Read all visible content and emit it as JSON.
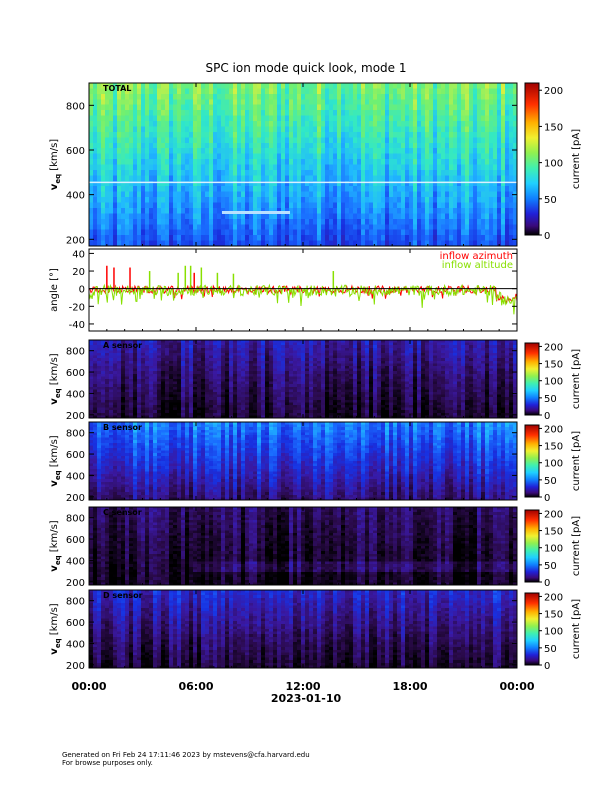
{
  "title": "SPC ion mode quick look, mode 1",
  "colors": {
    "azimuth": "#ff0000",
    "altitude": "#88e000",
    "colormap": [
      "#000000",
      "#2a0a4a",
      "#3a18a0",
      "#1830e0",
      "#1a6cff",
      "#20b8ff",
      "#30e8c8",
      "#70f070",
      "#d8f040",
      "#ffb000",
      "#ff3000",
      "#b00000"
    ]
  },
  "chart_data": [
    {
      "type": "heatmap",
      "panel": "total",
      "label": "TOTAL",
      "ylabel": "v_eq [km/s]",
      "ylabel_main": "v",
      "ylabel_sub": "eq",
      "ylabel_unit": "[km/s]",
      "ylim": [
        170,
        900
      ],
      "yticks": [
        200,
        400,
        600,
        800
      ],
      "colorbar": {
        "label": "current [pA]",
        "ticks": [
          0,
          50,
          100,
          150,
          200
        ],
        "range": [
          0,
          210
        ]
      },
      "intensity": "high"
    },
    {
      "type": "line",
      "panel": "angles",
      "ylabel": "angle [°]",
      "ylim": [
        -48,
        45
      ],
      "yticks": [
        -40,
        -20,
        0,
        20,
        40
      ],
      "zero_line": true,
      "legend": [
        {
          "name": "inflow azimuth",
          "color": "#ff0000"
        },
        {
          "name": "inflow altitude",
          "color": "#88e000"
        }
      ],
      "series": [
        {
          "name": "inflow azimuth",
          "baseline": -1,
          "noise": 4
        },
        {
          "name": "inflow altitude",
          "baseline": -2,
          "noise": 6
        }
      ],
      "spikes": [
        {
          "t": 1.0,
          "value": 26,
          "series": "inflow azimuth"
        },
        {
          "t": 1.4,
          "value": 24,
          "series": "inflow azimuth"
        },
        {
          "t": 2.3,
          "value": 24,
          "series": "inflow azimuth"
        },
        {
          "t": 3.4,
          "value": 20,
          "series": "inflow altitude"
        },
        {
          "t": 5.0,
          "value": 18,
          "series": "inflow altitude"
        },
        {
          "t": 5.4,
          "value": 26,
          "series": "inflow altitude"
        },
        {
          "t": 5.7,
          "value": 26,
          "series": "inflow altitude"
        },
        {
          "t": 5.9,
          "value": 18,
          "series": "inflow azimuth"
        },
        {
          "t": 6.3,
          "value": 24,
          "series": "inflow altitude"
        },
        {
          "t": 7.2,
          "value": 18,
          "series": "inflow altitude"
        },
        {
          "t": 8.1,
          "value": 17,
          "series": "inflow altitude"
        },
        {
          "t": 13.7,
          "value": 20,
          "series": "inflow altitude"
        }
      ]
    },
    {
      "type": "heatmap",
      "panel": "sensor-a",
      "label": "A sensor",
      "ylabel": "v_eq [km/s]",
      "ylabel_main": "v",
      "ylabel_sub": "eq",
      "ylabel_unit": "[km/s]",
      "ylim": [
        170,
        900
      ],
      "yticks": [
        200,
        400,
        600,
        800
      ],
      "colorbar": {
        "label": "current [pA]",
        "ticks": [
          0,
          50,
          100,
          150,
          200
        ],
        "range": [
          0,
          210
        ]
      },
      "intensity": "low"
    },
    {
      "type": "heatmap",
      "panel": "sensor-b",
      "label": "B sensor",
      "ylabel": "v_eq [km/s]",
      "ylabel_main": "v",
      "ylabel_sub": "eq",
      "ylabel_unit": "[km/s]",
      "ylim": [
        170,
        900
      ],
      "yticks": [
        200,
        400,
        600,
        800
      ],
      "colorbar": {
        "label": "current [pA]",
        "ticks": [
          0,
          50,
          100,
          150,
          200
        ],
        "range": [
          0,
          210
        ]
      },
      "intensity": "medium"
    },
    {
      "type": "heatmap",
      "panel": "sensor-c",
      "label": "C sensor",
      "ylabel": "v_eq [km/s]",
      "ylabel_main": "v",
      "ylabel_sub": "eq",
      "ylabel_unit": "[km/s]",
      "ylim": [
        170,
        900
      ],
      "yticks": [
        200,
        400,
        600,
        800
      ],
      "colorbar": {
        "label": "current [pA]",
        "ticks": [
          0,
          50,
          100,
          150,
          200
        ],
        "range": [
          0,
          210
        ]
      },
      "intensity": "very-low"
    },
    {
      "type": "heatmap",
      "panel": "sensor-d",
      "label": "D sensor",
      "ylabel": "v_eq [km/s]",
      "ylabel_main": "v",
      "ylabel_sub": "eq",
      "ylabel_unit": "[km/s]",
      "ylim": [
        170,
        900
      ],
      "yticks": [
        200,
        400,
        600,
        800
      ],
      "colorbar": {
        "label": "current [pA]",
        "ticks": [
          0,
          50,
          100,
          150,
          200
        ],
        "range": [
          0,
          210
        ]
      },
      "intensity": "low-medium"
    }
  ],
  "xaxis": {
    "range_hours": [
      0,
      24
    ],
    "ticks": [
      {
        "t": 0,
        "label": "00:00"
      },
      {
        "t": 6,
        "label": "06:00"
      },
      {
        "t": 12,
        "label": "12:00"
      },
      {
        "t": 18,
        "label": "18:00"
      },
      {
        "t": 24,
        "label": "00:00"
      }
    ],
    "date": "2023-01-10"
  },
  "footer": {
    "line1": "Generated on Fri Feb 24 17:11:46 2023 by mstevens@cfa.harvard.edu",
    "line2": "For browse purposes only."
  }
}
